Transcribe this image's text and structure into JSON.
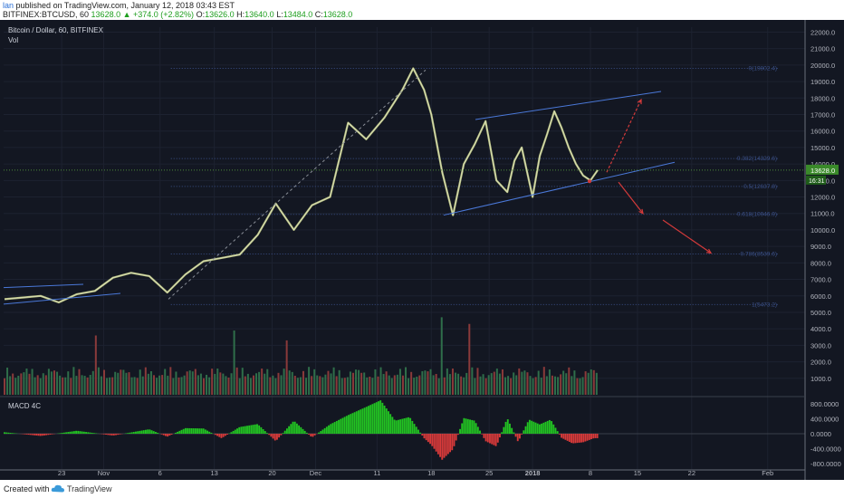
{
  "header": {
    "author": "lan",
    "published": "published on TradingView.com, January 12, 2018 03:43 EST",
    "symbol": "BITFINEX:BTCUSD, 60",
    "change": "13628.0 ▲ +374.0 (+2.82%)",
    "o_label": "O:",
    "o_value": "13626.0",
    "h_label": "H:",
    "h_value": "13640.0",
    "l_label": "L:",
    "l_value": "13484.0",
    "c_label": "C:",
    "c_value": "13628.0"
  },
  "footer": {
    "created": "Created with",
    "brand": "TradingView"
  },
  "colors": {
    "background": "#131722",
    "candle": "#c8d08a",
    "channel": "#4a78d8",
    "fib": "#3a4f86",
    "arrow": "#d23a3a",
    "macd_up": "#22c322",
    "macd_down": "#d83a3a",
    "price_label_bg": "#3a8a2a",
    "price_label_bg2": "#1f5c1a"
  },
  "chart_data": [
    {
      "type": "line",
      "title": "Bitcoin / Dollar, 60, BITFINEX",
      "indicator": "Vol",
      "x_ticks": [
        "23",
        "Nov",
        "6",
        "13",
        "20",
        "Dec",
        "11",
        "18",
        "25",
        "2018",
        "8",
        "15",
        "22",
        "Feb"
      ],
      "y_ticks": [
        "22000.0",
        "21000.0",
        "20000.0",
        "19000.0",
        "18000.0",
        "17000.0",
        "16000.0",
        "15000.0",
        "14000.0",
        "13000.0",
        "12000.0",
        "11000.0",
        "10000.0",
        "9000.0",
        "8000.0",
        "7000.0",
        "6000.0",
        "5000.0",
        "4000.0",
        "3000.0",
        "2000.0",
        "1000.0"
      ],
      "ylim": [
        0,
        22300
      ],
      "current_price": "13628.0",
      "countdown": "16:31",
      "series": [
        {
          "x": [
            0,
            5,
            10,
            15,
            20,
            25,
            30,
            35,
            40,
            45,
            50,
            55,
            60,
            65,
            70,
            75,
            80,
            85,
            90,
            95,
            100,
            105,
            110,
            113,
            116,
            118,
            121,
            124,
            127,
            130,
            133,
            136,
            139,
            141,
            143,
            146,
            148,
            150,
            152,
            154,
            156,
            158,
            160,
            162,
            164
          ],
          "y": [
            5800,
            5900,
            6000,
            5600,
            6100,
            6300,
            7100,
            7400,
            7200,
            6200,
            7300,
            8100,
            8300,
            8500,
            9700,
            11600,
            10000,
            11500,
            12000,
            16500,
            15500,
            16800,
            18500,
            19800,
            18500,
            17000,
            13500,
            10900,
            14000,
            15200,
            16600,
            13000,
            12300,
            14200,
            15000,
            12000,
            14500,
            15800,
            17200,
            16200,
            15000,
            14000,
            13300,
            13000,
            13628
          ]
        }
      ],
      "fib_levels": [
        {
          "label": "0(19802.4)",
          "value": 19802.4
        },
        {
          "label": "0.382(14329.6)",
          "value": 14329.6
        },
        {
          "label": "0.5(12637.8)",
          "value": 12637.8
        },
        {
          "label": "0.618(10946.9)",
          "value": 10946.9
        },
        {
          "label": "0.786(8539.6)",
          "value": 8539.6
        },
        {
          "label": "1(5473.2)",
          "value": 5473.2
        }
      ],
      "grid": true
    },
    {
      "type": "bar",
      "title": "MACD 4C",
      "y_ticks": [
        "800.0000",
        "400.0000",
        "0.0000",
        "-400.0000",
        "-800.0000"
      ],
      "ylim": [
        -950,
        950
      ],
      "x": [
        0,
        10,
        20,
        30,
        40,
        45,
        50,
        55,
        60,
        65,
        70,
        75,
        80,
        85,
        90,
        95,
        100,
        104,
        108,
        112,
        116,
        118,
        121,
        124,
        127,
        130,
        133,
        136,
        139,
        142,
        145,
        148,
        151,
        154,
        157,
        160,
        163
      ],
      "values": [
        40,
        -60,
        80,
        -50,
        120,
        -80,
        150,
        140,
        -120,
        180,
        260,
        -200,
        350,
        -100,
        250,
        500,
        720,
        900,
        350,
        450,
        -120,
        -300,
        -700,
        -420,
        420,
        350,
        -200,
        -340,
        420,
        -220,
        380,
        250,
        380,
        -110,
        -260,
        -230,
        -120
      ]
    }
  ]
}
